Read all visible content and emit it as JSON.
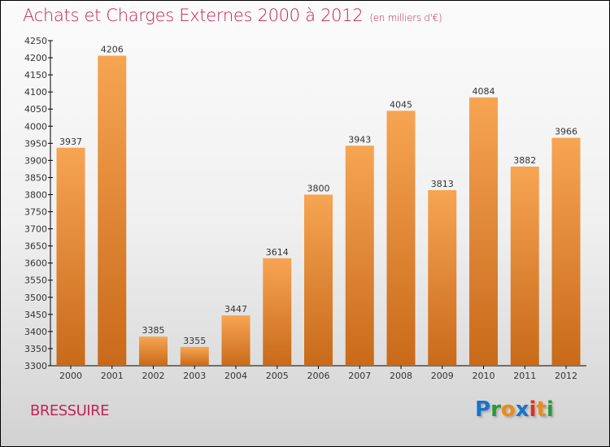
{
  "chart_data": {
    "type": "bar",
    "title": "Achats et Charges Externes 2000 à 2012",
    "subtitle": "(en milliers d'€)",
    "categories": [
      "2000",
      "2001",
      "2002",
      "2003",
      "2004",
      "2005",
      "2006",
      "2007",
      "2008",
      "2009",
      "2010",
      "2011",
      "2012"
    ],
    "values": [
      3937,
      4206,
      3385,
      3355,
      3447,
      3614,
      3800,
      3943,
      4045,
      3813,
      4084,
      3882,
      3966
    ],
    "ylim": [
      3300,
      4250
    ],
    "yticks": [
      3300,
      3350,
      3400,
      3450,
      3500,
      3550,
      3600,
      3650,
      3700,
      3750,
      3800,
      3850,
      3900,
      3950,
      4000,
      4050,
      4100,
      4150,
      4200,
      4250
    ],
    "xlabel": "",
    "ylabel": "",
    "bar_color_top": "#f7a553",
    "bar_color_bottom": "#c86a1a"
  },
  "location": "BRESSUIRE",
  "logo": {
    "letters": [
      "P",
      "r",
      "o",
      "x",
      "i",
      "t",
      "i"
    ],
    "colors": [
      "#1a73c9",
      "#2a9a3a",
      "#f08a10",
      "#1a73c9",
      "#e03020",
      "#f08a10",
      "#2a9a3a"
    ]
  }
}
